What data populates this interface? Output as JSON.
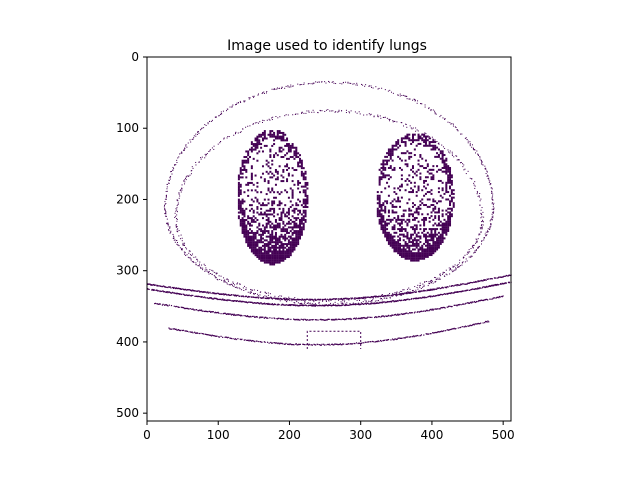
{
  "chart_data": {
    "type": "heatmap",
    "title": "Image used to identify lungs",
    "xlabel": "",
    "ylabel": "",
    "xlim": [
      0,
      511
    ],
    "ylim": [
      511,
      0
    ],
    "x_ticks": [
      0,
      100,
      200,
      300,
      400,
      500
    ],
    "y_ticks": [
      0,
      100,
      200,
      300,
      400,
      500
    ],
    "image_description_values": {
      "binary": true,
      "background_value": 0,
      "foreground_value": 1
    },
    "colors": {
      "background": "#ffffff",
      "foreground": "#440154",
      "axis": "#000000"
    },
    "grid": false,
    "regions": [
      {
        "name": "left-lung",
        "center": [
          175,
          195
        ],
        "radius": [
          50,
          95
        ]
      },
      {
        "name": "right-lung",
        "center": [
          375,
          195
        ],
        "radius": [
          55,
          90
        ]
      },
      {
        "name": "body-outline",
        "center": [
          255,
          220
        ],
        "radius": [
          235,
          180
        ]
      }
    ]
  }
}
